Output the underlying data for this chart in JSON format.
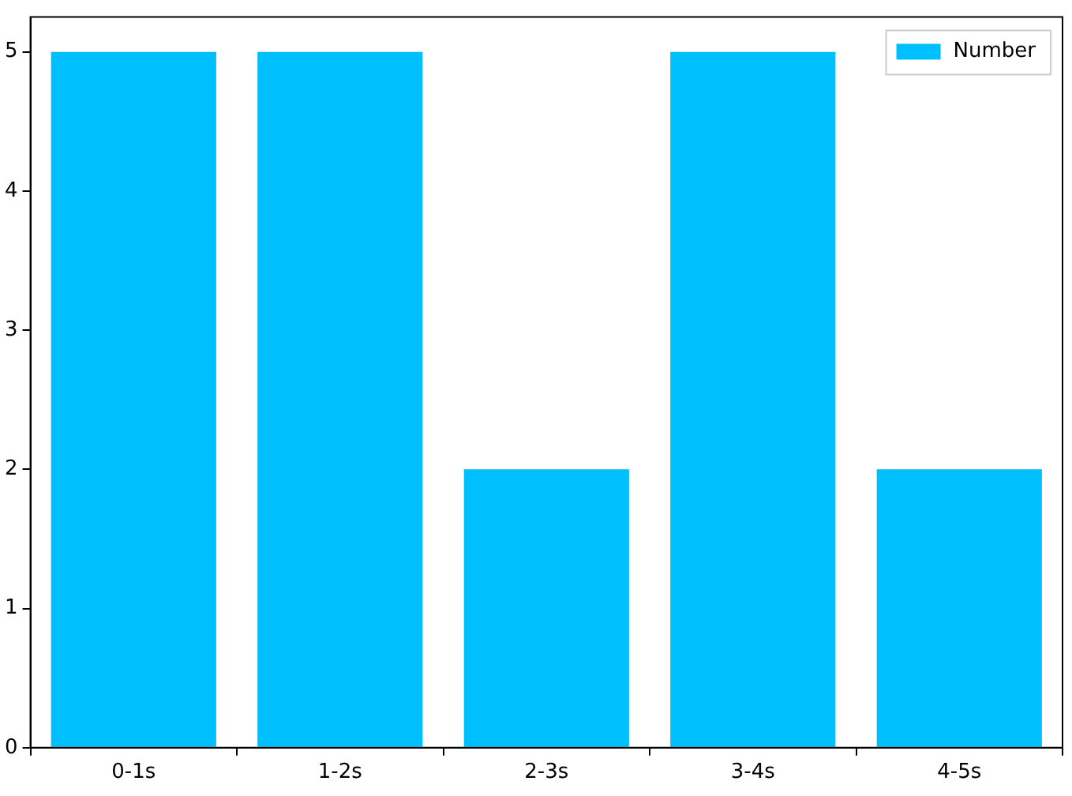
{
  "chart_data": {
    "type": "bar",
    "categories": [
      "0-1s",
      "1-2s",
      "2-3s",
      "3-4s",
      "4-5s"
    ],
    "series": [
      {
        "name": "Number",
        "color": "#00bfff",
        "values": [
          5,
          5,
          2,
          5,
          2
        ]
      }
    ],
    "ylim": [
      0,
      5.25
    ],
    "yticks": [
      0,
      1,
      2,
      3,
      4,
      5
    ],
    "grid": false,
    "legend": "top right"
  }
}
